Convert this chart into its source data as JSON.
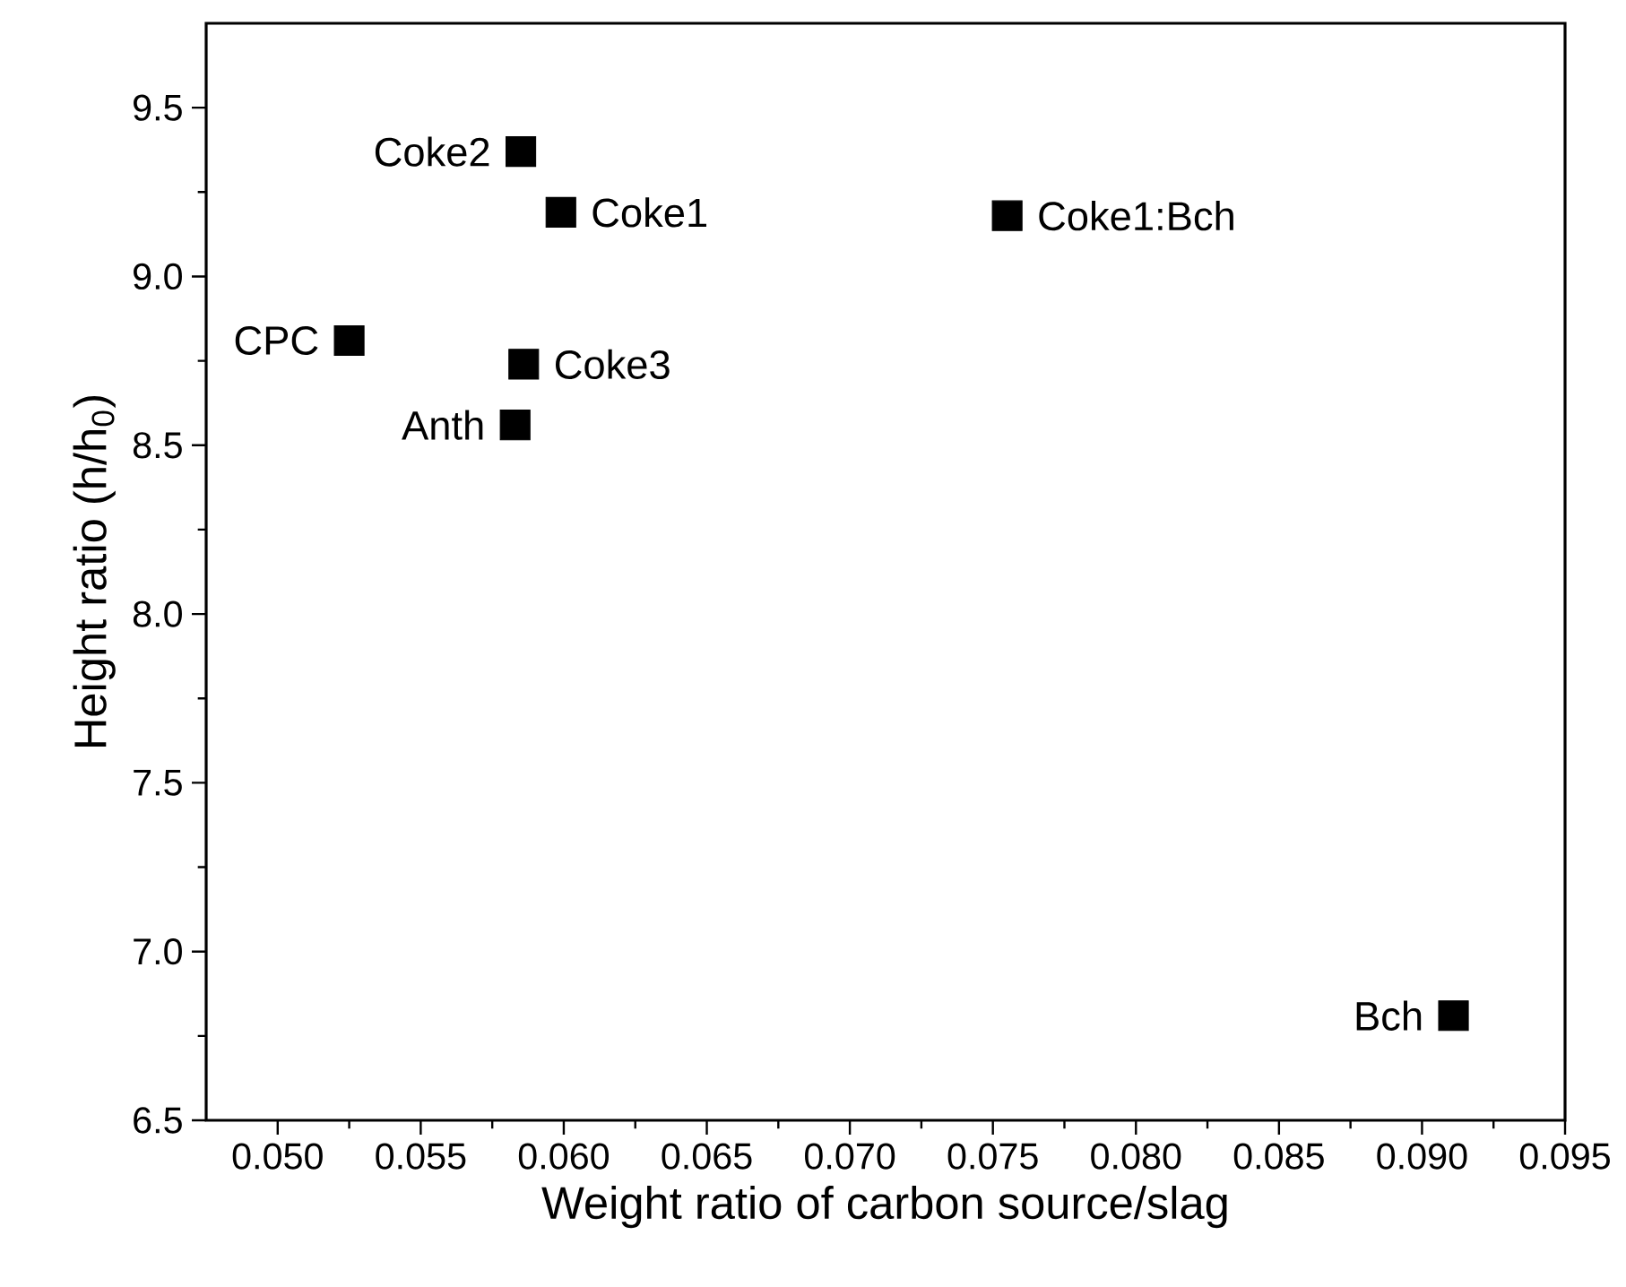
{
  "chart_data": {
    "type": "scatter",
    "xlabel": "Weight ratio of carbon source/slag",
    "ylabel": "Height ratio (h/h$_{0}$)",
    "x": [
      0.0585,
      0.0599,
      0.0755,
      0.0525,
      0.0586,
      0.0583,
      0.0911
    ],
    "values": [
      9.37,
      9.19,
      9.18,
      8.81,
      8.74,
      8.56,
      6.81
    ],
    "color": "#000000",
    "marker": "square",
    "xlim": [
      0.0475,
      0.095
    ],
    "ylim": [
      6.5,
      9.75
    ],
    "xticks": [
      {
        "value": 0.05,
        "label": "0.050"
      },
      {
        "value": 0.055,
        "label": "0.055"
      },
      {
        "value": 0.06,
        "label": "0.060"
      },
      {
        "value": 0.065,
        "label": "0.065"
      },
      {
        "value": 0.07,
        "label": "0.070"
      },
      {
        "value": 0.075,
        "label": "0.075"
      },
      {
        "value": 0.08,
        "label": "0.080"
      },
      {
        "value": 0.085,
        "label": "0.085"
      },
      {
        "value": 0.09,
        "label": "0.090"
      },
      {
        "value": 0.095,
        "label": "0.095"
      }
    ],
    "yticks": [
      6.5,
      {
        "value": 7.0,
        "label": "7.0"
      },
      7.5,
      {
        "value": 8.0,
        "label": "8.0"
      },
      8.5,
      {
        "value": 9.0,
        "label": "9.0"
      },
      9.5
    ],
    "annotations": [
      {
        "text": "Coke2",
        "x": 0.0585,
        "y": 9.37
      },
      {
        "text": "Coke1",
        "x": 0.0599,
        "y": 9.19
      },
      {
        "text": "Coke1:Bch",
        "x": 0.0755,
        "y": 9.18
      },
      {
        "text": "CPC",
        "x": 0.0525,
        "y": 8.81
      },
      {
        "text": "Coke3",
        "x": 0.0586,
        "y": 8.74
      },
      {
        "text": "Anth",
        "x": 0.0583,
        "y": 8.56
      },
      {
        "text": "Bch",
        "x": 0.0911,
        "y": 6.81
      }
    ]
  }
}
